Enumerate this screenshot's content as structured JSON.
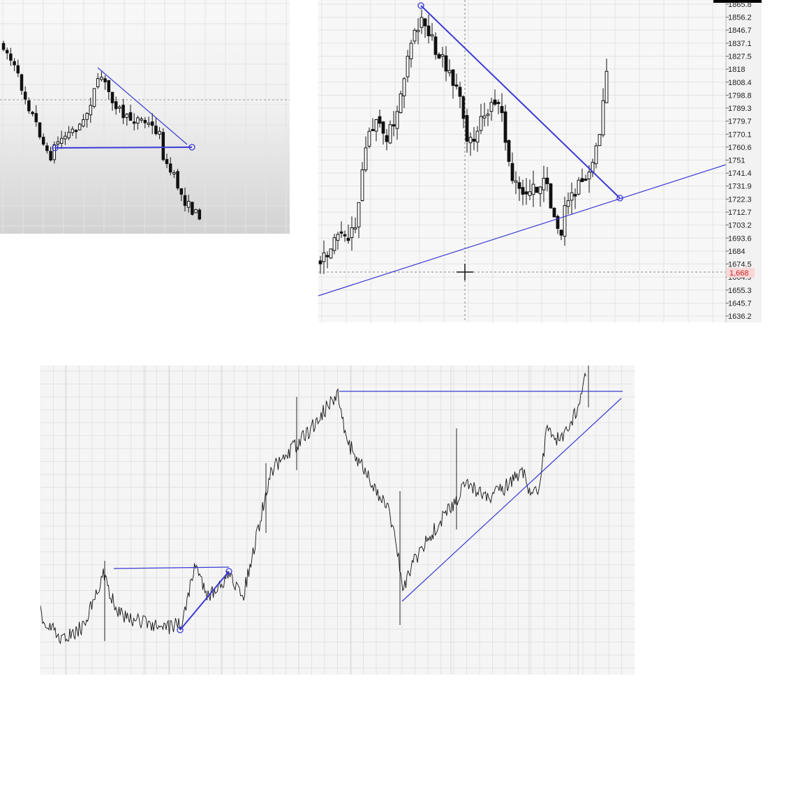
{
  "colors": {
    "trendline": "#3a3ad6",
    "candle_body_down": "#111111",
    "candle_body_up": "#ffffff",
    "wick": "#111111",
    "grid": "#e3e3e3",
    "crosshair": "#8a8a8a",
    "price_tag_bg": "#fbd6d6",
    "price_tag_text": "#c62828"
  },
  "chart_data": [
    {
      "type": "candlestick",
      "panel": "top-left",
      "trendlines": [
        {
          "kind": "horizontal-support",
          "anchor_markers": 2
        },
        {
          "kind": "descending-resistance"
        }
      ],
      "grid": true,
      "crosshair_horizontal": true
    },
    {
      "type": "candlestick",
      "panel": "top-right",
      "y_tick_labels": [
        "1865.8",
        "1856.2",
        "1846.7",
        "1837.1",
        "1827.5",
        "1818",
        "1808.4",
        "1798.8",
        "1789.3",
        "1779.7",
        "1770.1",
        "1760.6",
        "1751",
        "1741.4",
        "1731.9",
        "1722.3",
        "1712.7",
        "1703.2",
        "1693.6",
        "1684",
        "1674.5",
        "1664.9",
        "1655.3",
        "1645.7",
        "1636.2"
      ],
      "ylim": [
        1636.2,
        1865.8
      ],
      "current_price_label": "1,668",
      "trendlines": [
        {
          "kind": "descending-resistance",
          "from": 1865.8,
          "to": 1722.3
        },
        {
          "kind": "ascending-support",
          "from": 1650.0,
          "to": 1750.0
        }
      ],
      "crosshair": true,
      "grid": true
    },
    {
      "type": "line",
      "panel": "bottom",
      "trendlines": [
        {
          "kind": "horizontal-resistance-left"
        },
        {
          "kind": "ascending-short",
          "anchor_markers": 2
        },
        {
          "kind": "horizontal-resistance-top"
        },
        {
          "kind": "ascending-support"
        }
      ],
      "grid": true
    }
  ]
}
